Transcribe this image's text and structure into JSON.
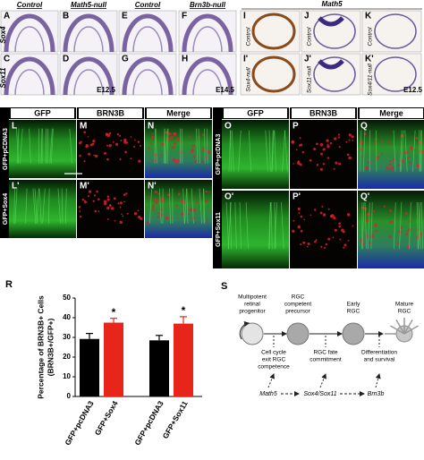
{
  "panels_top": {
    "headers": [
      "Control",
      "Math5-null",
      "Control",
      "Brn3b-null"
    ],
    "group_header": "Math5",
    "row_labels": [
      "Sox4",
      "Sox11"
    ],
    "letters": [
      "A",
      "B",
      "E",
      "F",
      "C",
      "D",
      "G",
      "H"
    ],
    "stage_labels": [
      "E12.5",
      "E14.5"
    ],
    "right_letters": [
      "I",
      "J",
      "K",
      "I'",
      "J'",
      "K'"
    ],
    "right_side_labels": [
      "Control",
      "Control",
      "Control",
      "Sox4-null",
      "Sox11-null",
      "Sox4/11-null"
    ],
    "right_stage": "E12.5"
  },
  "panels_middle": {
    "channels": [
      "GFP",
      "BRN3B",
      "Merge",
      "GFP",
      "BRN3B",
      "Merge"
    ],
    "row_labels": [
      "GFP+pCDNA3",
      "GFP+Sox4",
      "GFP+pcDNA3",
      "GFP+Sox11"
    ],
    "letters": [
      "L",
      "M",
      "N",
      "L'",
      "M'",
      "N'",
      "O",
      "P",
      "Q",
      "O'",
      "P'",
      "Q'"
    ]
  },
  "chart_data": {
    "type": "bar",
    "panel_label": "R",
    "y_label": [
      "Percentage of BRN3B+ Cells",
      "(BRN3B+/GFP+)"
    ],
    "categories": [
      "GFP+pcDNA3",
      "GFP+Sox4",
      "GFP+pcDNA3",
      "GFP+Sox11"
    ],
    "values": [
      29.2,
      37.5,
      28.5,
      37
    ],
    "errors": [
      2.8,
      2.2,
      2.5,
      3.5
    ],
    "colors": [
      "#000000",
      "#e8251b",
      "#000000",
      "#e8251b"
    ],
    "annotations": [
      {
        "text": "*",
        "category": 1
      },
      {
        "text": "*",
        "category": 3
      }
    ],
    "ylim": [
      0,
      50
    ],
    "yticks": [
      0,
      10,
      20,
      30,
      40,
      50
    ]
  },
  "diagram": {
    "label": "S",
    "stages": [
      [
        "Multipotent",
        "retinal",
        "progenitor"
      ],
      [
        "RGC",
        "competent",
        "precursor"
      ],
      [
        "Early",
        "RGC"
      ],
      [
        "Mature",
        "RGC"
      ]
    ],
    "processes": [
      [
        "Cell cycle",
        "exit RGC",
        "competence"
      ],
      [
        "RGC fate",
        "commitment"
      ],
      [
        "Differentiation",
        "and survival"
      ]
    ],
    "genes": [
      "Math5",
      "Sox4/Sox11",
      "Brn3b"
    ]
  }
}
